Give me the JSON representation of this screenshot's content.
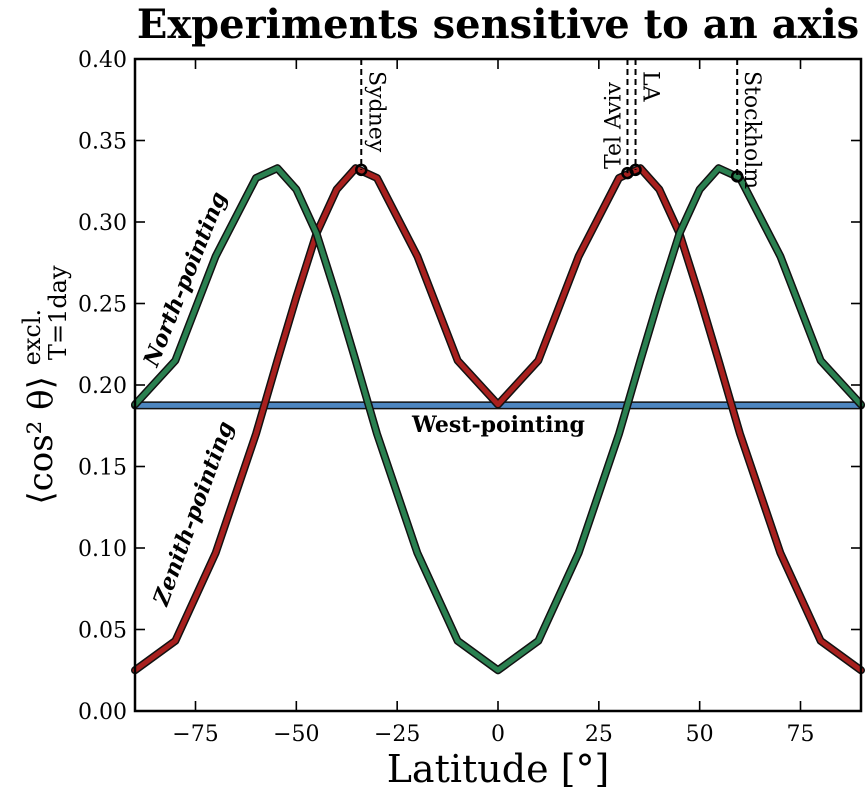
{
  "chart_data": {
    "type": "line",
    "title": "Experiments sensitive to an axis",
    "xlabel": "Latitude [°]",
    "ylabel": {
      "main": "⟨cos² θ⟩",
      "superscript": "excl.",
      "subscript": "T=1day"
    },
    "xlim": [
      -90,
      90
    ],
    "ylim": [
      0.0,
      0.4
    ],
    "xticks": [
      -75,
      -50,
      -25,
      0,
      25,
      50,
      75
    ],
    "xtick_labels": [
      "−75",
      "−50",
      "−25",
      "0",
      "25",
      "50",
      "75"
    ],
    "yticks": [
      0.0,
      0.05,
      0.1,
      0.15,
      0.2,
      0.25,
      0.3,
      0.35,
      0.4
    ],
    "ytick_labels": [
      "0.00",
      "0.05",
      "0.10",
      "0.15",
      "0.20",
      "0.25",
      "0.30",
      "0.35",
      "0.40"
    ],
    "grid": false,
    "series": [
      {
        "name": "Zenith-pointing",
        "color": "#a8201e",
        "x": [
          -90,
          -80,
          -70,
          -60,
          -54.7,
          -50,
          -45,
          -40,
          -35.3,
          -30,
          -20,
          -10,
          0,
          10,
          20,
          30,
          35.3,
          40,
          45,
          50,
          54.7,
          60,
          70,
          80,
          90
        ],
        "y": [
          0.025,
          0.043,
          0.097,
          0.17,
          0.215,
          0.254,
          0.293,
          0.32,
          0.333,
          0.327,
          0.279,
          0.215,
          0.188,
          0.215,
          0.279,
          0.327,
          0.333,
          0.32,
          0.293,
          0.254,
          0.215,
          0.17,
          0.097,
          0.043,
          0.025
        ]
      },
      {
        "name": "North-pointing",
        "color": "#2a8050",
        "x": [
          -90,
          -80,
          -70,
          -60,
          -54.7,
          -50,
          -45,
          -40,
          -35.3,
          -30,
          -20,
          -10,
          0,
          10,
          20,
          30,
          35.3,
          40,
          45,
          50,
          54.7,
          60,
          70,
          80,
          90
        ],
        "y": [
          0.188,
          0.215,
          0.279,
          0.327,
          0.333,
          0.32,
          0.293,
          0.254,
          0.215,
          0.17,
          0.097,
          0.043,
          0.025,
          0.043,
          0.097,
          0.17,
          0.215,
          0.254,
          0.293,
          0.32,
          0.333,
          0.327,
          0.279,
          0.215,
          0.188
        ]
      },
      {
        "name": "West-pointing",
        "color": "#4d86c0",
        "x": [
          -90,
          90
        ],
        "y": [
          0.1875,
          0.1875
        ]
      }
    ],
    "series_labels": [
      {
        "text": "North-pointing",
        "color": "#2a8050"
      },
      {
        "text": "Zenith-pointing",
        "color": "#a8201e"
      },
      {
        "text": "West-pointing",
        "color": "#4d86c0"
      }
    ],
    "annotations": [
      {
        "label": "Sydney",
        "latitude": -33.9,
        "value": 0.332
      },
      {
        "label": "Tel Aviv",
        "latitude": 32.1,
        "value": 0.33
      },
      {
        "label": "LA",
        "latitude": 34.1,
        "value": 0.332
      },
      {
        "label": "Stockholm",
        "latitude": 59.3,
        "value": 0.328
      }
    ]
  }
}
